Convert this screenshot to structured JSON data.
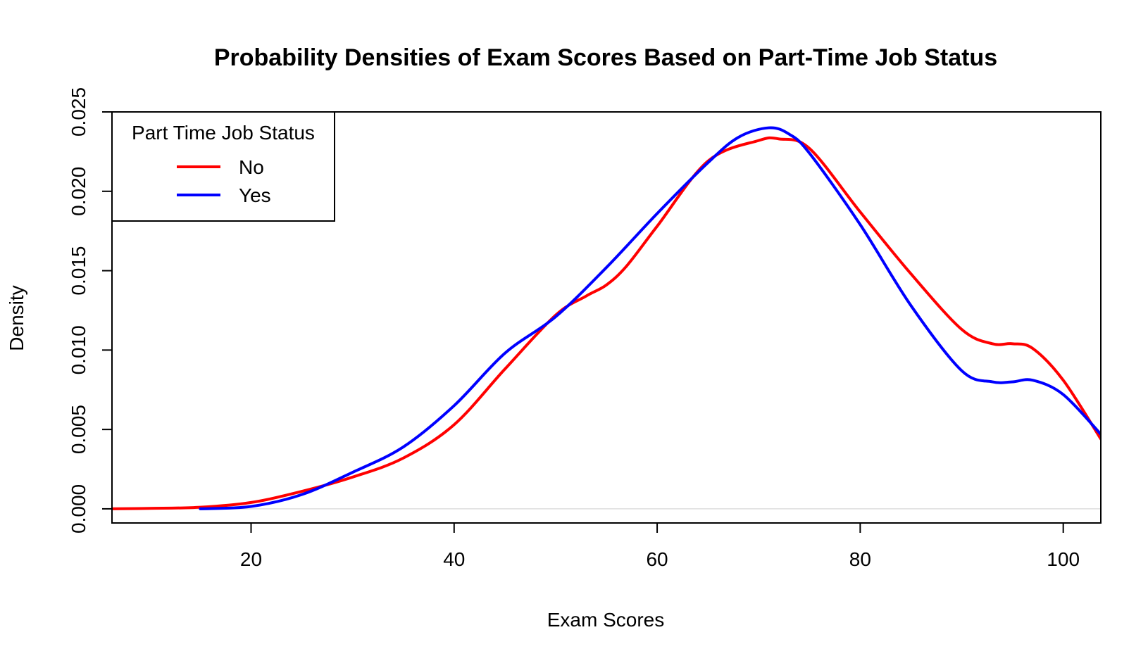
{
  "chart_data": {
    "type": "line",
    "title": "Probability Densities of Exam Scores Based on Part-Time Job Status",
    "xlabel": "Exam Scores",
    "ylabel": "Density",
    "xlim": [
      6.3,
      103.7
    ],
    "ylim": [
      -0.00089,
      0.025
    ],
    "x_ticks": [
      20,
      40,
      60,
      80,
      100
    ],
    "x_tick_labels": [
      "20",
      "40",
      "60",
      "80",
      "100"
    ],
    "y_ticks": [
      0.0,
      0.005,
      0.01,
      0.015,
      0.02,
      0.025
    ],
    "y_tick_labels": [
      "0.000",
      "0.005",
      "0.010",
      "0.015",
      "0.020",
      "0.025"
    ],
    "zero_line": true,
    "grid": false,
    "legend": {
      "title": "Part Time Job Status",
      "position": "top-left",
      "entries": [
        "No",
        "Yes"
      ]
    },
    "series": [
      {
        "name": "No",
        "color": "#ff0000",
        "x": [
          6,
          10,
          15,
          20,
          25,
          30,
          35,
          40,
          45,
          50,
          53,
          55,
          57,
          60,
          65,
          70,
          72,
          75,
          80,
          85,
          90,
          93,
          95,
          97,
          100,
          103.7
        ],
        "y": [
          0.0,
          3e-05,
          0.0001,
          0.0004,
          0.0011,
          0.002,
          0.0032,
          0.0053,
          0.0088,
          0.0122,
          0.0134,
          0.0141,
          0.0153,
          0.0178,
          0.0219,
          0.0232,
          0.0233,
          0.0227,
          0.0187,
          0.0148,
          0.0113,
          0.0104,
          0.0104,
          0.0101,
          0.0081,
          0.0044
        ]
      },
      {
        "name": "Yes",
        "color": "#0000ff",
        "x": [
          15,
          20,
          25,
          30,
          35,
          40,
          45,
          50,
          55,
          60,
          65,
          68,
          71,
          73,
          75,
          80,
          85,
          90,
          93,
          95,
          97,
          100,
          103.7
        ],
        "y": [
          0.0,
          0.00015,
          0.0009,
          0.0023,
          0.0039,
          0.0065,
          0.0098,
          0.0121,
          0.0152,
          0.0186,
          0.0218,
          0.0234,
          0.024,
          0.0236,
          0.0224,
          0.0179,
          0.0128,
          0.0087,
          0.008,
          0.008,
          0.0081,
          0.0072,
          0.0047
        ]
      }
    ]
  }
}
